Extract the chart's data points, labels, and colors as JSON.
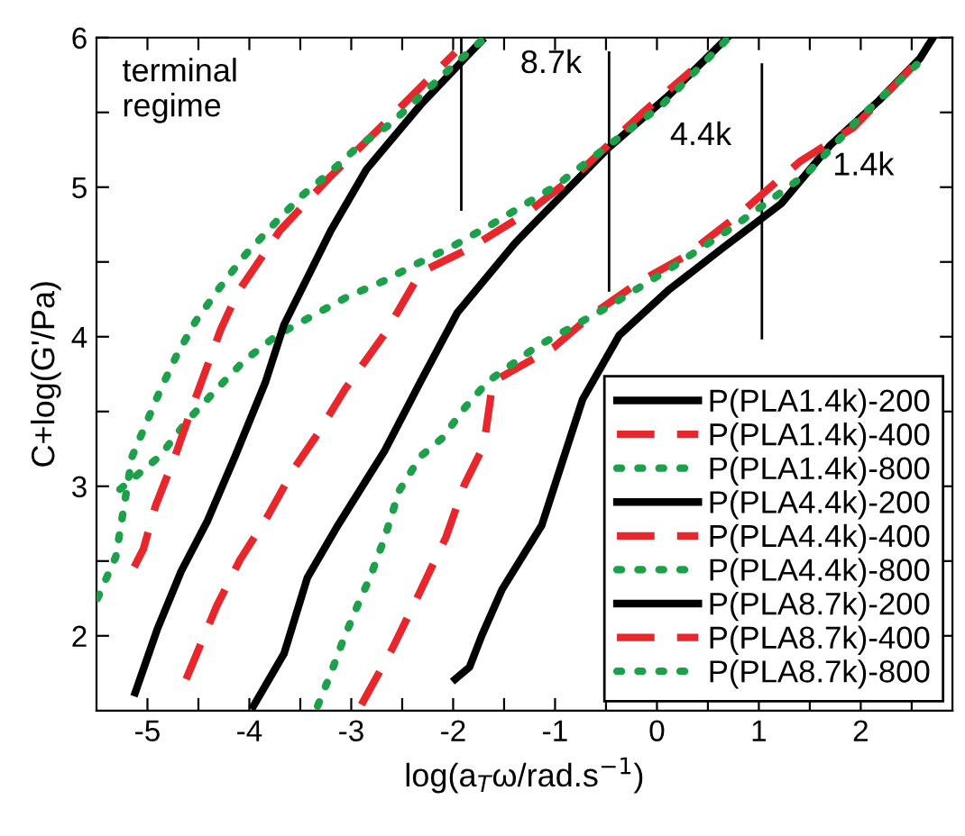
{
  "chart_data": {
    "type": "line",
    "xlabel": "log(a$_{T}$ω/rad.s$^{−1}$)",
    "ylabel": "C+log(G'/Pa)",
    "xlim": [
      -5.5,
      2.9
    ],
    "ylim": [
      1.5,
      6
    ],
    "xticks": [
      -5,
      {
        "value": -4.5,
        "label": null
      },
      -4,
      {
        "value": -3.5,
        "label": null
      },
      -3,
      {
        "value": -2.5,
        "label": null
      },
      -2,
      {
        "value": -1.5,
        "label": null
      },
      -1,
      {
        "value": -0.5,
        "label": null
      },
      0,
      {
        "value": 0.5,
        "label": null
      },
      1,
      {
        "value": 1.5,
        "label": null
      },
      2,
      {
        "value": 2.5,
        "label": null
      }
    ],
    "yticks": [
      2,
      {
        "value": 2.5,
        "label": null
      },
      3,
      {
        "value": 3.5,
        "label": null
      },
      4,
      {
        "value": 4.5,
        "label": null
      },
      5,
      {
        "value": 5.5,
        "label": null
      },
      6
    ],
    "grid": false,
    "legend": "bottom right",
    "series": [
      {
        "name": "P(PLA1.4k)-200",
        "color": "#000000",
        "line_style": "solid",
        "x": [
          -1.98,
          -1.84,
          -1.72,
          -1.52,
          -1.13,
          -0.73,
          -0.37,
          0.11,
          0.64,
          1.22,
          1.7,
          2.18,
          2.58,
          2.71
        ],
        "values": [
          1.71,
          1.79,
          2.0,
          2.31,
          2.74,
          3.58,
          4.01,
          4.31,
          4.59,
          4.89,
          5.28,
          5.58,
          5.86,
          6.0
        ]
      },
      {
        "name": "P(PLA1.4k)-400",
        "color": "#e8262b",
        "line_style": "dashed",
        "x": [
          -2.9,
          -2.6,
          -2.37,
          -2.07,
          -1.89,
          -1.7,
          -1.61,
          -1.01,
          -0.65,
          -0.19,
          0.28,
          0.81,
          1.4,
          1.93,
          2.53
        ],
        "values": [
          1.54,
          1.91,
          2.23,
          2.66,
          3.01,
          3.27,
          3.7,
          3.93,
          4.14,
          4.36,
          4.54,
          4.82,
          5.17,
          5.4,
          5.82
        ]
      },
      {
        "name": "P(PLA1.4k)-800",
        "color": "#1ca04a",
        "line_style": "dotted",
        "x": [
          -3.33,
          -3.2,
          -3.08,
          -2.94,
          -2.81,
          -2.67,
          -2.53,
          -2.32,
          -2.11,
          -1.88,
          -1.66,
          -1.19,
          -0.48,
          0.16,
          0.76,
          1.47,
          2.0,
          2.55
        ],
        "values": [
          1.53,
          1.75,
          1.97,
          2.2,
          2.4,
          2.66,
          2.97,
          3.2,
          3.32,
          3.53,
          3.7,
          3.93,
          4.2,
          4.47,
          4.74,
          5.09,
          5.47,
          5.82
        ]
      },
      {
        "name": "P(PLA4.4k)-200",
        "color": "#000000",
        "line_style": "solid",
        "x": [
          -3.96,
          -3.66,
          -3.43,
          -3.13,
          -2.67,
          -2.32,
          -1.96,
          -1.4,
          -1.26,
          -0.48,
          0.11,
          0.69
        ],
        "values": [
          1.53,
          1.88,
          2.39,
          2.74,
          3.24,
          3.7,
          4.16,
          4.62,
          4.72,
          5.26,
          5.61,
          6.0
        ]
      },
      {
        "name": "P(PLA4.4k)-400",
        "color": "#e8262b",
        "line_style": "dashed",
        "x": [
          -4.62,
          -4.32,
          -4.09,
          -3.82,
          -3.56,
          -3.33,
          -3.06,
          -2.67,
          -2.32,
          -1.84,
          -1.27,
          -0.78,
          -0.12,
          0.34
        ],
        "values": [
          1.71,
          2.2,
          2.51,
          2.8,
          3.12,
          3.35,
          3.65,
          4.02,
          4.43,
          4.59,
          4.83,
          5.09,
          5.51,
          5.78
        ]
      },
      {
        "name": "P(PLA4.4k)-800",
        "color": "#1ca04a",
        "line_style": "dotted",
        "x": [
          -5.27,
          -4.88,
          -4.62,
          -4.32,
          -4.05,
          -3.73,
          -3.38,
          -3.03,
          -2.69,
          -2.35,
          -2.02,
          -1.65,
          -0.99,
          -0.55,
          0.05,
          0.69
        ],
        "values": [
          2.98,
          3.2,
          3.43,
          3.65,
          3.84,
          4.01,
          4.14,
          4.27,
          4.37,
          4.49,
          4.6,
          4.74,
          5.01,
          5.24,
          5.55,
          5.99
        ]
      },
      {
        "name": "P(PLA8.7k)-200",
        "color": "#000000",
        "line_style": "solid",
        "x": [
          -5.12,
          -4.9,
          -4.67,
          -4.41,
          -4.14,
          -3.84,
          -3.66,
          -3.2,
          -2.85,
          -2.32,
          -1.72
        ],
        "values": [
          1.62,
          2.05,
          2.43,
          2.77,
          3.2,
          3.7,
          4.08,
          4.71,
          5.12,
          5.55,
          5.98
        ]
      },
      {
        "name": "P(PLA8.7k)-400",
        "color": "#e8262b",
        "line_style": "dashed",
        "x": [
          -5.13,
          -5.04,
          -4.92,
          -4.73,
          -4.55,
          -4.28,
          -4.11,
          -3.7,
          -3.22,
          -2.67,
          -1.98
        ],
        "values": [
          2.46,
          2.58,
          2.87,
          3.2,
          3.55,
          4.05,
          4.3,
          4.71,
          5.06,
          5.43,
          5.9
        ]
      },
      {
        "name": "P(PLA8.7k)-800",
        "color": "#1ca04a",
        "line_style": "dotted",
        "x": [
          -5.49,
          -5.31,
          -5.15,
          -4.87,
          -4.71,
          -4.53,
          -4.3,
          -4.05,
          -3.75,
          -3.49,
          -3.19,
          -2.92,
          -2.62,
          -2.32,
          -2.02,
          -1.72
        ],
        "values": [
          2.25,
          2.53,
          3.2,
          3.65,
          3.88,
          4.1,
          4.32,
          4.54,
          4.76,
          4.94,
          5.11,
          5.28,
          5.42,
          5.61,
          5.8,
          5.98
        ]
      },
      {
        "color": "#000000",
        "line_style": "solid",
        "x": [
          -1.92,
          -1.92
        ],
        "values": [
          4.85,
          6.0
        ]
      },
      {
        "color": "#000000",
        "line_style": "solid",
        "x": [
          -0.47,
          -0.47
        ],
        "values": [
          4.31,
          5.9
        ]
      },
      {
        "color": "#000000",
        "line_style": "solid",
        "x": [
          1.03,
          1.03
        ],
        "values": [
          3.99,
          5.82
        ]
      }
    ],
    "annotations": [
      "terminal\nregime",
      "8.7k",
      "4.4k",
      "1.4k"
    ]
  }
}
